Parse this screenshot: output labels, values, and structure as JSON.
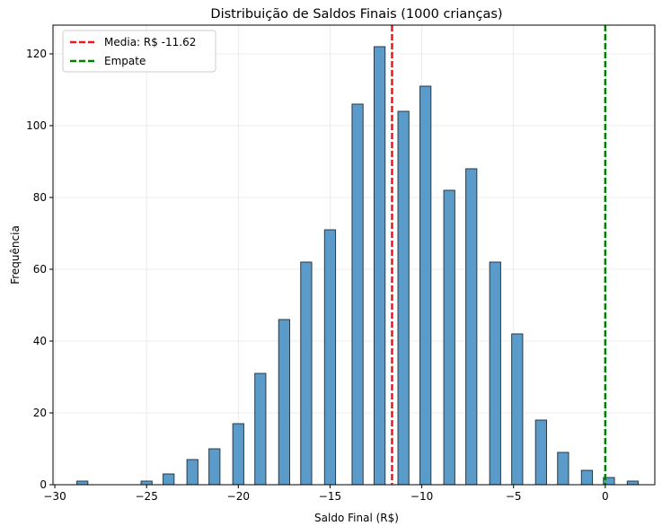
{
  "chart_data": {
    "type": "bar",
    "title": "Distribuição de Saldos Finais (1000 crianças)",
    "xlabel": "Saldo Final (R$)",
    "ylabel": "Frequência",
    "xlim": [
      -30.1,
      2.7
    ],
    "ylim": [
      0,
      128
    ],
    "xticks": [
      -30,
      -25,
      -20,
      -15,
      -10,
      -5,
      0
    ],
    "yticks": [
      0,
      20,
      40,
      60,
      80,
      100,
      120
    ],
    "grid": true,
    "legend_position": "top-left",
    "bar_width": 0.6,
    "bar_color": "#5b9bc9",
    "bar_edge_color": "#2a3a47",
    "bars": [
      {
        "x": -28.5,
        "value": 1
      },
      {
        "x": -25.0,
        "value": 1
      },
      {
        "x": -23.8,
        "value": 3
      },
      {
        "x": -22.5,
        "value": 7
      },
      {
        "x": -21.3,
        "value": 10
      },
      {
        "x": -20.0,
        "value": 17
      },
      {
        "x": -18.8,
        "value": 31
      },
      {
        "x": -17.5,
        "value": 46
      },
      {
        "x": -16.3,
        "value": 62
      },
      {
        "x": -15.0,
        "value": 71
      },
      {
        "x": -13.5,
        "value": 106
      },
      {
        "x": -12.3,
        "value": 122
      },
      {
        "x": -11.0,
        "value": 104
      },
      {
        "x": -9.8,
        "value": 111
      },
      {
        "x": -8.5,
        "value": 82
      },
      {
        "x": -7.3,
        "value": 88
      },
      {
        "x": -6.0,
        "value": 62
      },
      {
        "x": -4.8,
        "value": 42
      },
      {
        "x": -3.5,
        "value": 18
      },
      {
        "x": -2.3,
        "value": 9
      },
      {
        "x": -1.0,
        "value": 4
      },
      {
        "x": 0.2,
        "value": 2
      },
      {
        "x": 1.5,
        "value": 1
      }
    ],
    "reference_lines": [
      {
        "name": "Media: R$ -11.62",
        "x": -11.62,
        "color": "#e41a1c",
        "style": "dashed"
      },
      {
        "name": "Empate",
        "x": 0,
        "color": "#008000",
        "style": "dashed"
      }
    ]
  }
}
